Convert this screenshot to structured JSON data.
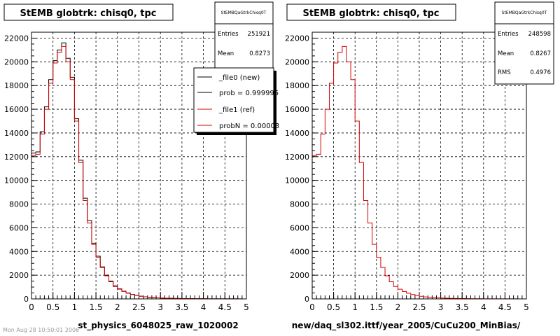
{
  "colors": {
    "new": "#000000",
    "ref": "#d40000",
    "grid": "#000000",
    "background": "#ffffff"
  },
  "footer_note": "Mon Aug 28 10:50:01 2006",
  "chart_data": [
    {
      "type": "line",
      "step": true,
      "title": "StEMB globtrk: chisq0, tpc",
      "xlabel": "st_physics_6048025_raw_1020002",
      "ylabel": "",
      "xlim": [
        0,
        5
      ],
      "ylim": [
        0,
        22500
      ],
      "x_ticks": [
        "0",
        "0.5",
        "1",
        "1.5",
        "2",
        "2.5",
        "3",
        "3.5",
        "4",
        "4.5",
        "5"
      ],
      "y_ticks": [
        "0",
        "2000",
        "4000",
        "6000",
        "8000",
        "10000",
        "12000",
        "14000",
        "16000",
        "18000",
        "20000",
        "22000"
      ],
      "grid": true,
      "bin_width": 0.1,
      "stats": {
        "name": "StEMBQaGtrkChisq0T",
        "entries_label": "Entries",
        "entries": "251921",
        "mean_label": "Mean",
        "mean": "0.8273"
      },
      "legend": {
        "placement": "top-right",
        "entries": [
          "_file0 (new)",
          "prob = 0.999995",
          "_file1 (ref)",
          "probN = 0.00003"
        ]
      },
      "series": [
        {
          "name": "_file0 (new)",
          "values": [
            12300,
            12400,
            14100,
            16200,
            18500,
            20100,
            21000,
            21600,
            20300,
            18700,
            15200,
            11700,
            8500,
            6600,
            4700,
            3600,
            2700,
            2000,
            1500,
            1100,
            850,
            650,
            500,
            380,
            300,
            230,
            180,
            140,
            110,
            90,
            70,
            60,
            50,
            40,
            35,
            30,
            25,
            20,
            18,
            15,
            12,
            10,
            9,
            8,
            7,
            6,
            5,
            4,
            4,
            3
          ]
        },
        {
          "name": "_file1 (ref)",
          "values": [
            12100,
            12200,
            13900,
            16000,
            18200,
            19900,
            20800,
            21300,
            20000,
            18500,
            15000,
            11500,
            8300,
            6400,
            4600,
            3500,
            2650,
            1950,
            1450,
            1050,
            820,
            630,
            480,
            370,
            290,
            220,
            170,
            135,
            105,
            85,
            68,
            56,
            46,
            38,
            32,
            27,
            22,
            18,
            16,
            13,
            11,
            9,
            8,
            7,
            6,
            5,
            4,
            4,
            3,
            3
          ]
        }
      ]
    },
    {
      "type": "line",
      "step": true,
      "title": "StEMB globtrk: chisq0, tpc",
      "xlabel": "new/daq_sl302.ittf/year_2005/CuCu200_MinBias/",
      "ylabel": "",
      "xlim": [
        0,
        5
      ],
      "ylim": [
        0,
        22500
      ],
      "x_ticks": [
        "0",
        "0.5",
        "1",
        "1.5",
        "2",
        "2.5",
        "3",
        "3.5",
        "4",
        "4.5",
        "5"
      ],
      "y_ticks": [
        "0",
        "2000",
        "4000",
        "6000",
        "8000",
        "10000",
        "12000",
        "14000",
        "16000",
        "18000",
        "20000",
        "22000"
      ],
      "grid": true,
      "bin_width": 0.1,
      "stats": {
        "name": "StEMBQaGtrkChisq0T",
        "entries_label": "Entries",
        "entries": "248598",
        "mean_label": "Mean",
        "mean": "0.8267",
        "rms_label": "RMS",
        "rms": "0.4976"
      },
      "series": [
        {
          "name": "_file1 (ref)",
          "values": [
            12100,
            12200,
            13900,
            16000,
            18200,
            19900,
            20800,
            21300,
            20000,
            18500,
            15000,
            11500,
            8300,
            6400,
            4600,
            3500,
            2650,
            1950,
            1450,
            1050,
            820,
            630,
            480,
            370,
            290,
            220,
            170,
            135,
            105,
            85,
            68,
            56,
            46,
            38,
            32,
            27,
            22,
            18,
            16,
            13,
            11,
            9,
            8,
            7,
            6,
            5,
            4,
            4,
            3,
            3
          ]
        }
      ]
    }
  ]
}
